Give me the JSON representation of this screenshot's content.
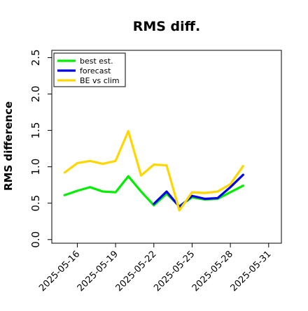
{
  "chart_data": {
    "type": "line",
    "title": "RMS diff.",
    "ylabel": "RMS difference",
    "xlabel": "",
    "ylim": [
      -0.05,
      2.6
    ],
    "yticks": [
      "0.0",
      "0.5",
      "1.0",
      "1.5",
      "2.0",
      "2.5"
    ],
    "xlim": [
      "2025-05-14",
      "2025-06-01"
    ],
    "xticks": [
      {
        "date": "2025-05-16",
        "label": "2025-05-16",
        "color": "#000000"
      },
      {
        "date": "2025-05-19",
        "label": "2025-05-19",
        "color": "#000000"
      },
      {
        "date": "2025-05-22",
        "label": "2025-05-22",
        "color": "#228b22"
      },
      {
        "date": "2025-05-25",
        "label": "2025-05-25",
        "color": "#000000"
      },
      {
        "date": "2025-05-28",
        "label": "2025-05-28",
        "color": "#000000"
      },
      {
        "date": "2025-05-31",
        "label": "2025-05-31",
        "color": "#000000"
      }
    ],
    "x": [
      "2025-05-15",
      "2025-05-16",
      "2025-05-17",
      "2025-05-18",
      "2025-05-19",
      "2025-05-20",
      "2025-05-21",
      "2025-05-22",
      "2025-05-23",
      "2025-05-24",
      "2025-05-25",
      "2025-05-26",
      "2025-05-27",
      "2025-05-28",
      "2025-05-29"
    ],
    "series": [
      {
        "name": "best est.",
        "color": "#00ee00",
        "values": [
          0.61,
          0.67,
          0.72,
          0.66,
          0.65,
          0.87,
          0.66,
          0.47,
          0.63,
          0.46,
          0.58,
          0.55,
          0.56,
          0.65,
          0.74
        ]
      },
      {
        "name": "forecast",
        "color": "#0000ee",
        "values": [
          null,
          null,
          null,
          null,
          null,
          null,
          null,
          0.49,
          0.66,
          0.45,
          0.6,
          0.56,
          0.57,
          0.72,
          0.89
        ]
      },
      {
        "name": "BE vs clim",
        "color": "#ffd700",
        "values": [
          0.92,
          1.05,
          1.08,
          1.04,
          1.08,
          1.49,
          0.88,
          1.03,
          1.02,
          0.4,
          0.65,
          0.64,
          0.66,
          0.76,
          1.01
        ]
      }
    ],
    "legend_position": "top-left",
    "grid": false
  }
}
